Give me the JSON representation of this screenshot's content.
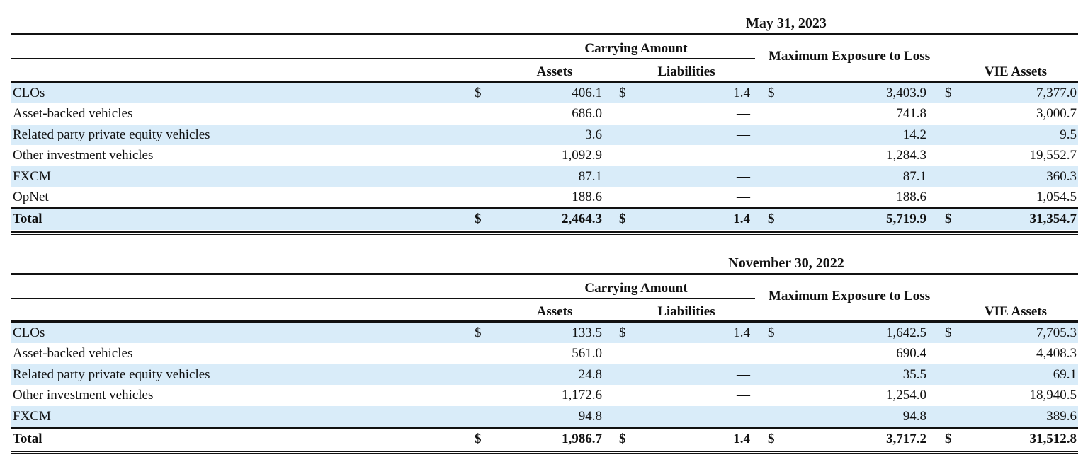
{
  "tables": [
    {
      "period": "May 31, 2023",
      "headers": {
        "carrying_amount": "Carrying Amount",
        "assets": "Assets",
        "liabilities": "Liabilities",
        "max_exposure": "Maximum Exposure to Loss",
        "vie_assets": "VIE Assets"
      },
      "rows": [
        {
          "label": "CLOs",
          "cur1": "$",
          "assets": "406.1",
          "cur2": "$",
          "liabilities": "1.4",
          "cur3": "$",
          "max_exposure": "3,403.9",
          "cur4": "$",
          "vie_assets": "7,377.0"
        },
        {
          "label": "Asset-backed vehicles",
          "cur1": "",
          "assets": "686.0",
          "cur2": "",
          "liabilities": "—",
          "cur3": "",
          "max_exposure": "741.8",
          "cur4": "",
          "vie_assets": "3,000.7"
        },
        {
          "label": "Related party private equity vehicles",
          "cur1": "",
          "assets": "3.6",
          "cur2": "",
          "liabilities": "—",
          "cur3": "",
          "max_exposure": "14.2",
          "cur4": "",
          "vie_assets": "9.5"
        },
        {
          "label": "Other investment vehicles",
          "cur1": "",
          "assets": "1,092.9",
          "cur2": "",
          "liabilities": "—",
          "cur3": "",
          "max_exposure": "1,284.3",
          "cur4": "",
          "vie_assets": "19,552.7"
        },
        {
          "label": "FXCM",
          "cur1": "",
          "assets": "87.1",
          "cur2": "",
          "liabilities": "—",
          "cur3": "",
          "max_exposure": "87.1",
          "cur4": "",
          "vie_assets": "360.3"
        },
        {
          "label": "OpNet",
          "cur1": "",
          "assets": "188.6",
          "cur2": "",
          "liabilities": "—",
          "cur3": "",
          "max_exposure": "188.6",
          "cur4": "",
          "vie_assets": "1,054.5"
        }
      ],
      "total": {
        "label": "Total",
        "cur1": "$",
        "assets": "2,464.3",
        "cur2": "$",
        "liabilities": "1.4",
        "cur3": "$",
        "max_exposure": "5,719.9",
        "cur4": "$",
        "vie_assets": "31,354.7"
      }
    },
    {
      "period": "November 30, 2022",
      "headers": {
        "carrying_amount": "Carrying Amount",
        "assets": "Assets",
        "liabilities": "Liabilities",
        "max_exposure": "Maximum Exposure to Loss",
        "vie_assets": "VIE Assets"
      },
      "rows": [
        {
          "label": "CLOs",
          "cur1": "$",
          "assets": "133.5",
          "cur2": "$",
          "liabilities": "1.4",
          "cur3": "$",
          "max_exposure": "1,642.5",
          "cur4": "$",
          "vie_assets": "7,705.3"
        },
        {
          "label": "Asset-backed vehicles",
          "cur1": "",
          "assets": "561.0",
          "cur2": "",
          "liabilities": "—",
          "cur3": "",
          "max_exposure": "690.4",
          "cur4": "",
          "vie_assets": "4,408.3"
        },
        {
          "label": "Related party private equity vehicles",
          "cur1": "",
          "assets": "24.8",
          "cur2": "",
          "liabilities": "—",
          "cur3": "",
          "max_exposure": "35.5",
          "cur4": "",
          "vie_assets": "69.1"
        },
        {
          "label": "Other investment vehicles",
          "cur1": "",
          "assets": "1,172.6",
          "cur2": "",
          "liabilities": "—",
          "cur3": "",
          "max_exposure": "1,254.0",
          "cur4": "",
          "vie_assets": "18,940.5"
        },
        {
          "label": "FXCM",
          "cur1": "",
          "assets": "94.8",
          "cur2": "",
          "liabilities": "—",
          "cur3": "",
          "max_exposure": "94.8",
          "cur4": "",
          "vie_assets": "389.6"
        }
      ],
      "total": {
        "label": "Total",
        "cur1": "$",
        "assets": "1,986.7",
        "cur2": "$",
        "liabilities": "1.4",
        "cur3": "$",
        "max_exposure": "3,717.2",
        "cur4": "$",
        "vie_assets": "31,512.8"
      }
    }
  ]
}
